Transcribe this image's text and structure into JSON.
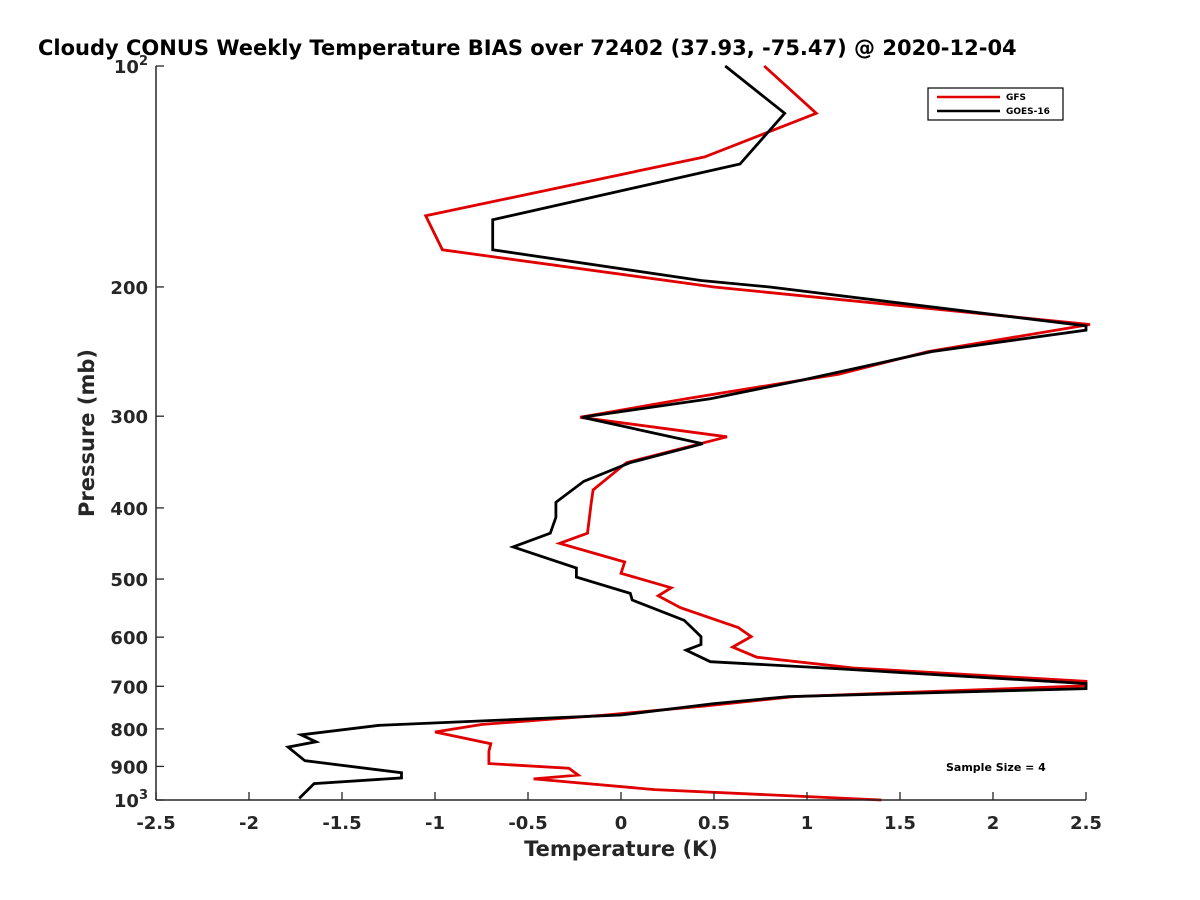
{
  "chart_data": {
    "type": "line",
    "title": "Cloudy CONUS Weekly Temperature BIAS over 72402 (37.93, -75.47) @ 2020-12-04",
    "xlabel": "Temperature (K)",
    "ylabel": "Pressure (mb)",
    "xlim": [
      -2.5,
      2.5
    ],
    "ylim": [
      100,
      1000
    ],
    "yscale": "log",
    "y_reversed": true,
    "grid": false,
    "legend_position": "top-right",
    "x_ticks": [
      "-2.5",
      "-2",
      "-1.5",
      "-1",
      "-0.5",
      "0",
      "0.5",
      "1",
      "1.5",
      "2",
      "2.5"
    ],
    "y_ticks": [
      {
        "value": 100,
        "label": "10",
        "sup": "2"
      },
      {
        "value": 200,
        "label": "200",
        "sup": ""
      },
      {
        "value": 300,
        "label": "300",
        "sup": ""
      },
      {
        "value": 400,
        "label": "400",
        "sup": ""
      },
      {
        "value": 500,
        "label": "500",
        "sup": ""
      },
      {
        "value": 600,
        "label": "600",
        "sup": ""
      },
      {
        "value": 700,
        "label": "700",
        "sup": ""
      },
      {
        "value": 800,
        "label": "800",
        "sup": ""
      },
      {
        "value": 900,
        "label": "900",
        "sup": ""
      },
      {
        "value": 1000,
        "label": "10",
        "sup": "3"
      }
    ],
    "annotation": "Sample Size = 4",
    "series": [
      {
        "name": "GFS",
        "color": "#e00000",
        "points": [
          [
            0.77,
            100
          ],
          [
            1.05,
            116
          ],
          [
            0.45,
            133
          ],
          [
            -1.05,
            160
          ],
          [
            -0.96,
            178
          ],
          [
            0.5,
            200
          ],
          [
            2.55,
            225
          ],
          [
            1.65,
            245
          ],
          [
            1.17,
            263
          ],
          [
            0.35,
            284
          ],
          [
            -0.22,
            301
          ],
          [
            0.57,
            320
          ],
          [
            0.03,
            347
          ],
          [
            -0.15,
            378
          ],
          [
            -0.16,
            394
          ],
          [
            -0.18,
            433
          ],
          [
            -0.33,
            447
          ],
          [
            0.02,
            474
          ],
          [
            0,
            491
          ],
          [
            0.27,
            514
          ],
          [
            0.2,
            527
          ],
          [
            0.32,
            547
          ],
          [
            0.63,
            582
          ],
          [
            0.7,
            599
          ],
          [
            0.6,
            619
          ],
          [
            0.73,
            639
          ],
          [
            1.25,
            661
          ],
          [
            2.5,
            689
          ],
          [
            2.5,
            699
          ],
          [
            0.93,
            723
          ],
          [
            0.44,
            745
          ],
          [
            -0.08,
            766
          ],
          [
            -0.75,
            789
          ],
          [
            -1,
            808
          ],
          [
            -0.7,
            838
          ],
          [
            -0.71,
            858
          ],
          [
            -0.71,
            892
          ],
          [
            -0.28,
            905
          ],
          [
            -0.23,
            925
          ],
          [
            -0.47,
            936
          ],
          [
            0.18,
            968
          ],
          [
            1.4,
            1000
          ]
        ]
      },
      {
        "name": "GOES-16",
        "color": "#000000",
        "points": [
          [
            0.56,
            100
          ],
          [
            0.88,
            116
          ],
          [
            0.64,
            136
          ],
          [
            -0.69,
            162
          ],
          [
            -0.69,
            178
          ],
          [
            0.43,
            196
          ],
          [
            0.8,
            200
          ],
          [
            2.5,
            226
          ],
          [
            2.5,
            229
          ],
          [
            1.67,
            245
          ],
          [
            0.97,
            268
          ],
          [
            0.48,
            284
          ],
          [
            -0.21,
            301
          ],
          [
            0.44,
            327
          ],
          [
            0.05,
            347
          ],
          [
            -0.2,
            368
          ],
          [
            -0.35,
            393
          ],
          [
            -0.35,
            412
          ],
          [
            -0.38,
            433
          ],
          [
            -0.58,
            452
          ],
          [
            -0.24,
            483
          ],
          [
            -0.24,
            497
          ],
          [
            0.05,
            523
          ],
          [
            0.06,
            534
          ],
          [
            0.34,
            569
          ],
          [
            0.43,
            599
          ],
          [
            0.43,
            614
          ],
          [
            0.35,
            625
          ],
          [
            0.48,
            648
          ],
          [
            1.1,
            661
          ],
          [
            2.5,
            694
          ],
          [
            2.5,
            705
          ],
          [
            0.9,
            723
          ],
          [
            0.5,
            739
          ],
          [
            0,
            766
          ],
          [
            -1.3,
            791
          ],
          [
            -1.72,
            815
          ],
          [
            -1.64,
            833
          ],
          [
            -1.79,
            847
          ],
          [
            -1.7,
            884
          ],
          [
            -1.18,
            918
          ],
          [
            -1.18,
            933
          ],
          [
            -1.65,
            950
          ],
          [
            -1.73,
            995
          ]
        ]
      }
    ]
  }
}
